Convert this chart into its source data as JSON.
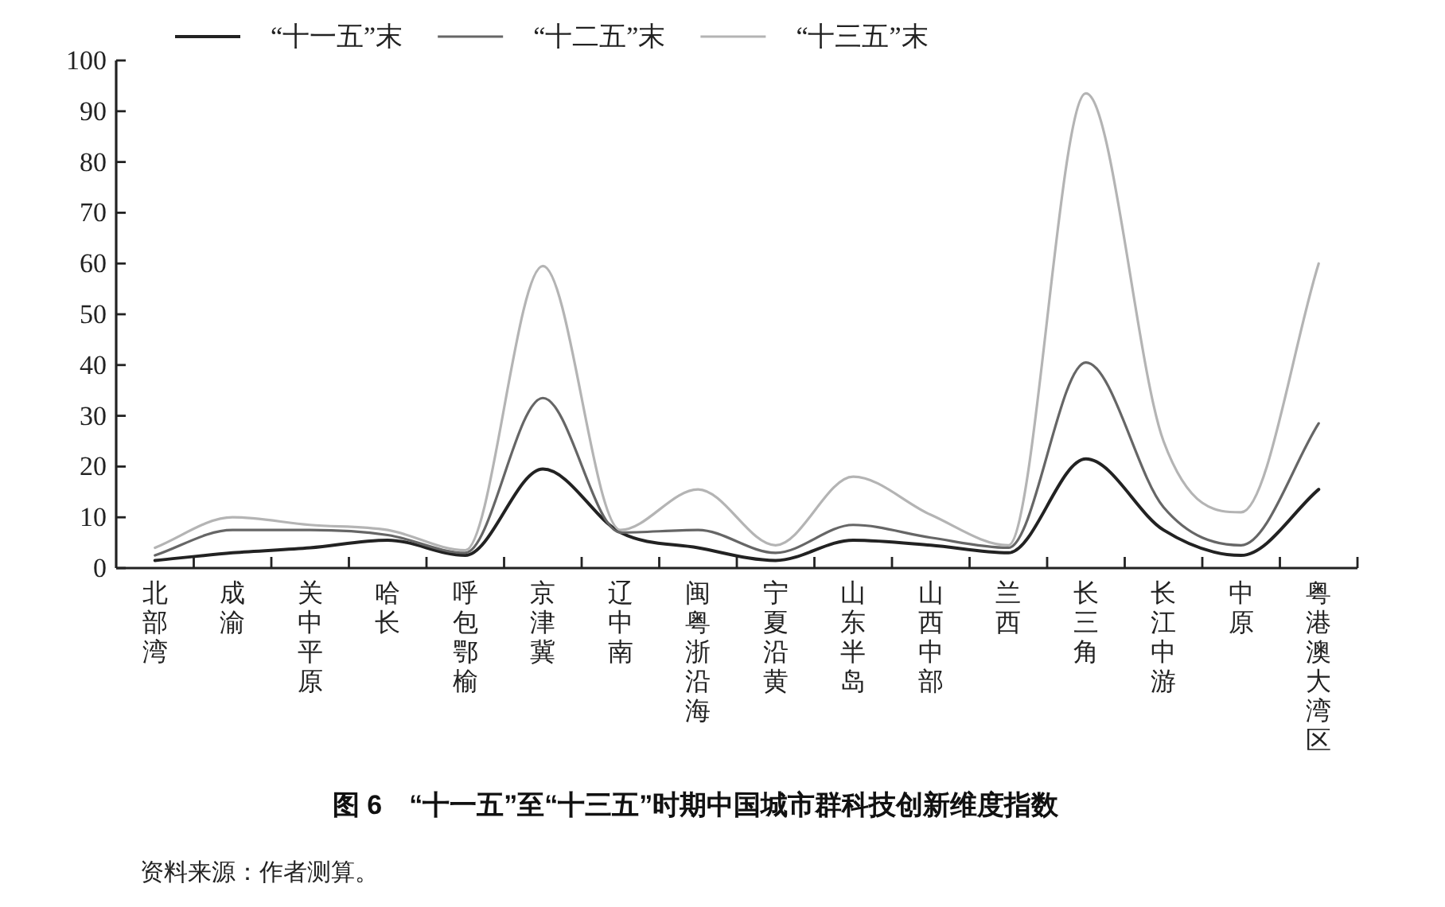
{
  "chart_data": {
    "type": "line",
    "title": "图 6　“十一五”至“十三五”时期中国城市群科技创新维度指数",
    "categories": [
      "北部湾",
      "成渝",
      "关中平原",
      "哈长",
      "呼包鄂榆",
      "京津冀",
      "辽中南",
      "闽粤浙沿海",
      "宁夏沿黄",
      "山东半岛",
      "山西中部",
      "兰西",
      "长三角",
      "长江中游",
      "中原",
      "粤港澳大湾区"
    ],
    "series": [
      {
        "name": "“十一五”末",
        "color": "#222222",
        "values": [
          1.5,
          3,
          4,
          5.5,
          2.5,
          19.5,
          7,
          4,
          1.5,
          5.5,
          4.5,
          3,
          21.5,
          7.5,
          2.5,
          15.5
        ]
      },
      {
        "name": "“十二五”末",
        "color": "#666666",
        "values": [
          2.5,
          7.5,
          7.5,
          6.5,
          3,
          33.5,
          7,
          7.5,
          3,
          8.5,
          6,
          4,
          40.5,
          12,
          4.5,
          28.5
        ]
      },
      {
        "name": "“十三五”末",
        "color": "#b4b4b4",
        "values": [
          4,
          10,
          8.5,
          7.5,
          3.5,
          59.5,
          7.5,
          15.5,
          4.5,
          18,
          10.5,
          4.5,
          93.5,
          25,
          11,
          60
        ]
      }
    ],
    "ylim": [
      0,
      100
    ],
    "yticks": [
      0,
      10,
      20,
      30,
      40,
      50,
      60,
      70,
      80,
      90,
      100
    ],
    "legend": "top",
    "line_style": "solid",
    "annotations": [
      "资料来源：作者测算。"
    ]
  }
}
